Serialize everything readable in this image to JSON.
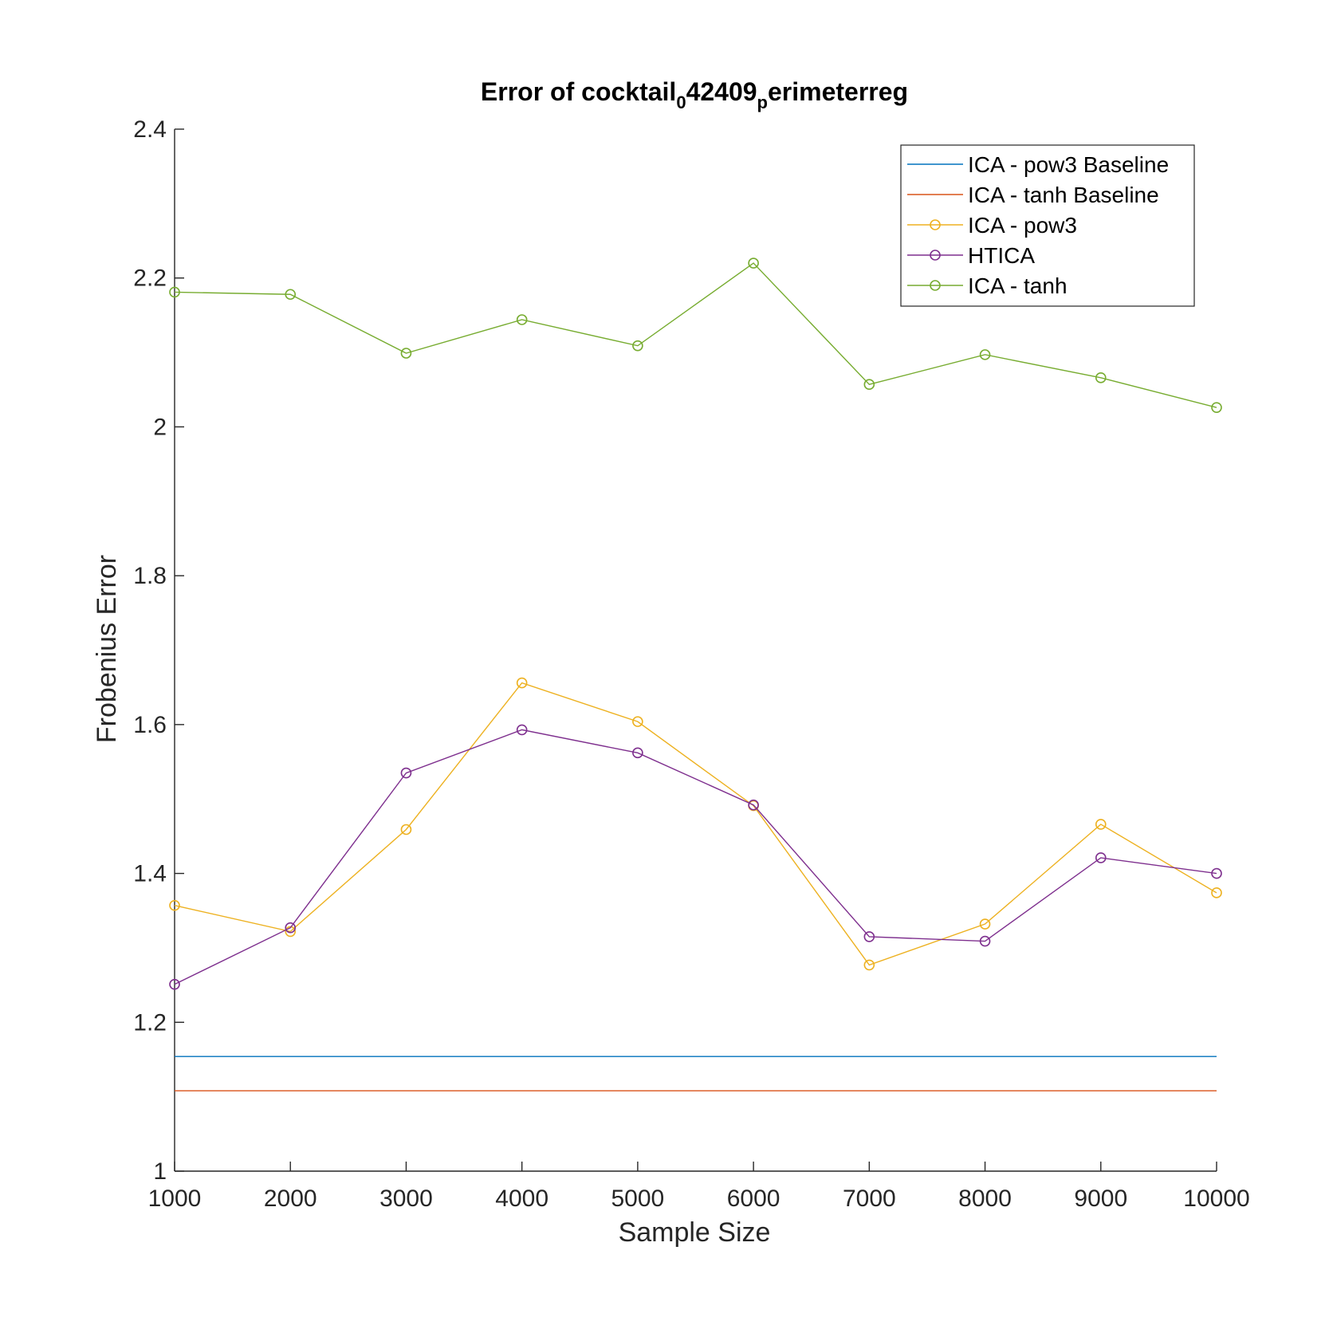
{
  "chart_data": {
    "type": "line",
    "title_parts": [
      {
        "text": "Error of cocktail",
        "sub": false
      },
      {
        "text": "0",
        "sub": true
      },
      {
        "text": "42409",
        "sub": false
      },
      {
        "text": "p",
        "sub": true
      },
      {
        "text": "erimeterreg",
        "sub": false
      }
    ],
    "xlabel": "Sample Size",
    "ylabel": "Frobenius Error",
    "xlim": [
      1000,
      10000
    ],
    "ylim": [
      1,
      2.4
    ],
    "xticks": [
      1000,
      2000,
      3000,
      4000,
      5000,
      6000,
      7000,
      8000,
      9000,
      10000
    ],
    "xtick_labels": [
      "1000",
      "2000",
      "3000",
      "4000",
      "5000",
      "6000",
      "7000",
      "8000",
      "9000",
      "10000"
    ],
    "yticks": [
      1,
      1.2,
      1.4,
      1.6,
      1.8,
      2,
      2.2,
      2.4
    ],
    "ytick_labels": [
      "1",
      "1.2",
      "1.4",
      "1.6",
      "1.8",
      "2",
      "2.2",
      "2.4"
    ],
    "grid": false,
    "legend_position": "top-right",
    "x": [
      1000,
      2000,
      3000,
      4000,
      5000,
      6000,
      7000,
      8000,
      9000,
      10000
    ],
    "series": [
      {
        "name": "ICA - pow3 Baseline",
        "color": "#0072BD",
        "marker": "none",
        "values": [
          1.154,
          1.154,
          1.154,
          1.154,
          1.154,
          1.154,
          1.154,
          1.154,
          1.154,
          1.154
        ]
      },
      {
        "name": "ICA - tanh Baseline",
        "color": "#D95319",
        "marker": "none",
        "values": [
          1.108,
          1.108,
          1.108,
          1.108,
          1.108,
          1.108,
          1.108,
          1.108,
          1.108,
          1.108
        ]
      },
      {
        "name": "ICA - pow3",
        "color": "#EDB120",
        "marker": "circle",
        "values": [
          1.357,
          1.322,
          1.459,
          1.656,
          1.604,
          1.491,
          1.277,
          1.332,
          1.466,
          1.374
        ]
      },
      {
        "name": "HTICA",
        "color": "#7E2F8E",
        "marker": "circle",
        "values": [
          1.251,
          1.327,
          1.535,
          1.593,
          1.562,
          1.492,
          1.315,
          1.309,
          1.421,
          1.4
        ]
      },
      {
        "name": "ICA - tanh",
        "color": "#77AC30",
        "marker": "circle",
        "values": [
          2.181,
          2.178,
          2.099,
          2.144,
          2.109,
          2.22,
          2.057,
          2.097,
          2.066,
          2.026
        ]
      }
    ]
  }
}
